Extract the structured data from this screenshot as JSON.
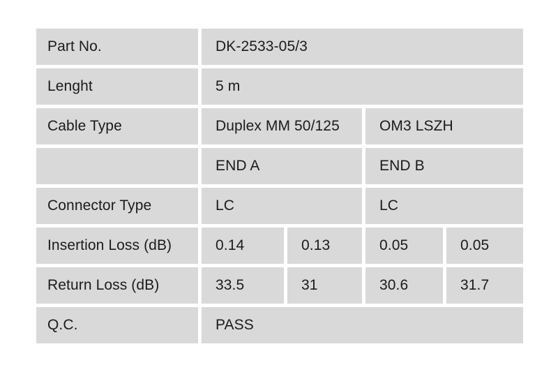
{
  "document": {
    "type": "cable-test-report-table",
    "colors": {
      "page_background": "#ffffff",
      "cell_background": "#d9d9d9",
      "cell_gap": "#ffffff",
      "text": "#1b1b1b"
    },
    "table": {
      "rows": [
        {
          "label": "Part No.",
          "values": [
            "DK-2533-05/3"
          ]
        },
        {
          "label": "Lenght",
          "values": [
            "5 m"
          ]
        },
        {
          "label": "Cable Type",
          "values": [
            "Duplex MM 50/125",
            "OM3 LSZH"
          ]
        },
        {
          "label": "",
          "values": [
            "END A",
            "END B"
          ]
        },
        {
          "label": "Connector Type",
          "values": [
            "LC",
            "LC"
          ]
        },
        {
          "label": "Insertion Loss (dB)",
          "values": [
            "0.14",
            "0.13",
            "0.05",
            "0.05"
          ]
        },
        {
          "label": "Return Loss (dB)",
          "values": [
            "33.5",
            "31",
            "30.6",
            "31.7"
          ]
        },
        {
          "label": "Q.C.",
          "values": [
            "PASS"
          ]
        }
      ]
    }
  }
}
